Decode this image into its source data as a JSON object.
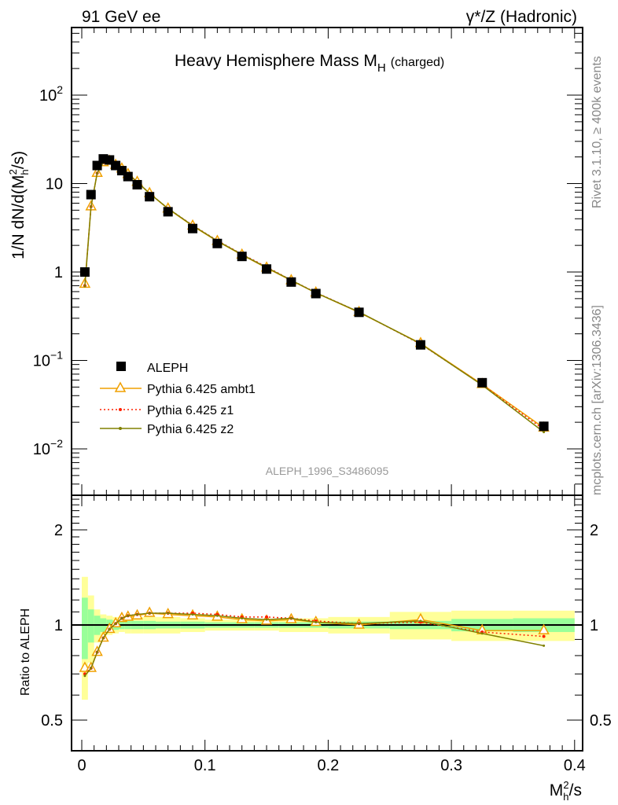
{
  "header": {
    "left": "91 GeV ee",
    "right": "γ*/Z (Hadronic)"
  },
  "side": {
    "rivet": "Rivet 3.1.10, ≥ 400k events",
    "mcplots": "mcplots.cern.ch [arXiv:1306.3436]"
  },
  "chart_data": [
    {
      "type": "line",
      "title": "Heavy Hemisphere Mass M_H (charged)",
      "title_main": "Heavy Hemisphere Mass M",
      "title_sub": "H",
      "title_suffix": "(charged)",
      "ylabel": "1/N dN/d(M_h^2/s)",
      "yscale": "log",
      "ylim": [
        0.003,
        570
      ],
      "xlim": [
        -0.01,
        0.405
      ],
      "analysis_label": "ALEPH_1996_S3486095",
      "yticks": [
        {
          "v": 0.01,
          "l": "10",
          "e": "−2"
        },
        {
          "v": 0.1,
          "l": "10",
          "e": "−1"
        },
        {
          "v": 1,
          "l": "1",
          "e": ""
        },
        {
          "v": 10,
          "l": "10",
          "e": ""
        },
        {
          "v": 100,
          "l": "10",
          "e": "2"
        }
      ],
      "x": [
        0.0025,
        0.0075,
        0.0125,
        0.0175,
        0.0225,
        0.0275,
        0.0325,
        0.0375,
        0.045,
        0.055,
        0.07,
        0.09,
        0.11,
        0.13,
        0.15,
        0.17,
        0.19,
        0.225,
        0.275,
        0.325,
        0.375
      ],
      "bin_edges": [
        0,
        0.005,
        0.01,
        0.015,
        0.02,
        0.025,
        0.03,
        0.035,
        0.04,
        0.05,
        0.06,
        0.08,
        0.1,
        0.12,
        0.14,
        0.16,
        0.18,
        0.2,
        0.25,
        0.3,
        0.35,
        0.4
      ],
      "legend": "middle-left",
      "data": {
        "name": "ALEPH",
        "values": [
          1.0,
          7.5,
          16,
          19,
          18.5,
          16,
          14,
          12,
          9.7,
          7.1,
          4.8,
          3.1,
          2.1,
          1.5,
          1.08,
          0.77,
          0.57,
          0.35,
          0.15,
          0.056,
          0.018
        ]
      },
      "series": [
        {
          "name": "Pythia 6.425 ambt1",
          "color": "#f0a000",
          "style": "solid-triangle",
          "ratio": [
            0.73,
            0.73,
            0.82,
            0.91,
            0.97,
            1.01,
            1.05,
            1.06,
            1.07,
            1.09,
            1.08,
            1.07,
            1.06,
            1.04,
            1.03,
            1.04,
            1.02,
            1.0,
            1.04,
            0.96,
            0.96
          ]
        },
        {
          "name": "Pythia 6.425 z1",
          "color": "#ff2000",
          "style": "dotted-dot",
          "ratio": [
            0.7,
            0.73,
            0.82,
            0.91,
            0.97,
            1.01,
            1.05,
            1.07,
            1.08,
            1.09,
            1.09,
            1.09,
            1.08,
            1.06,
            1.06,
            1.05,
            1.03,
            1.01,
            1.02,
            0.95,
            0.92
          ]
        },
        {
          "name": "Pythia 6.425 z2",
          "color": "#808000",
          "style": "solid-dot",
          "ratio": [
            0.69,
            0.73,
            0.82,
            0.91,
            0.97,
            1.01,
            1.05,
            1.07,
            1.08,
            1.09,
            1.09,
            1.08,
            1.07,
            1.05,
            1.04,
            1.05,
            1.02,
            1.01,
            1.03,
            0.94,
            0.86
          ]
        }
      ]
    },
    {
      "type": "line",
      "ylabel": "Ratio to ALEPH",
      "xlabel": "M_h^2/s",
      "yscale": "log",
      "ylim": [
        0.4,
        2.57
      ],
      "yticks": [
        {
          "v": 0.5,
          "l": "0.5"
        },
        {
          "v": 1,
          "l": "1"
        },
        {
          "v": 2,
          "l": "2"
        }
      ],
      "xticks": [
        {
          "v": 0,
          "l": "0"
        },
        {
          "v": 0.1,
          "l": "0.1"
        },
        {
          "v": 0.2,
          "l": "0.2"
        },
        {
          "v": 0.3,
          "l": "0.3"
        },
        {
          "v": 0.4,
          "l": "0.4"
        }
      ],
      "stat_band": [
        0.22,
        0.12,
        0.07,
        0.05,
        0.04,
        0.035,
        0.03,
        0.03,
        0.03,
        0.03,
        0.025,
        0.025,
        0.02,
        0.02,
        0.02,
        0.02,
        0.02,
        0.025,
        0.03,
        0.045,
        0.05
      ],
      "total_band": [
        0.42,
        0.24,
        0.12,
        0.08,
        0.07,
        0.06,
        0.05,
        0.06,
        0.06,
        0.06,
        0.06,
        0.05,
        0.04,
        0.04,
        0.04,
        0.05,
        0.05,
        0.06,
        0.1,
        0.11,
        0.11
      ]
    }
  ]
}
